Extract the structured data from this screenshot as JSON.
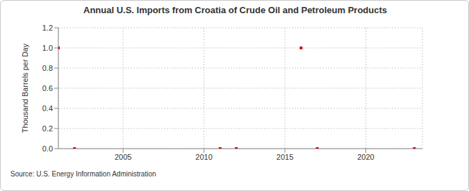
{
  "chart_data": {
    "type": "scatter",
    "title": "Annual U.S. Imports from Croatia of Crude Oil and Petroleum Products",
    "y_label": "Thousand Barrels per Day",
    "source": "Source: U.S. Energy Information Administration",
    "x": [
      2001,
      2002,
      2011,
      2012,
      2016,
      2017,
      2023
    ],
    "values": [
      1.0,
      0,
      0,
      0,
      1.0,
      0,
      0
    ],
    "color": "#cc0000",
    "marker": "square",
    "xlim": [
      2001,
      2023.5
    ],
    "xticks": [
      2005,
      2010,
      2015,
      2020
    ],
    "ylim": [
      0,
      1.2
    ],
    "yticks": [
      {
        "value": 0,
        "label": "0.0"
      },
      0.2,
      0.4,
      0.6,
      0.8,
      {
        "value": 1,
        "label": "1.0"
      },
      1.2
    ],
    "grid": true
  }
}
